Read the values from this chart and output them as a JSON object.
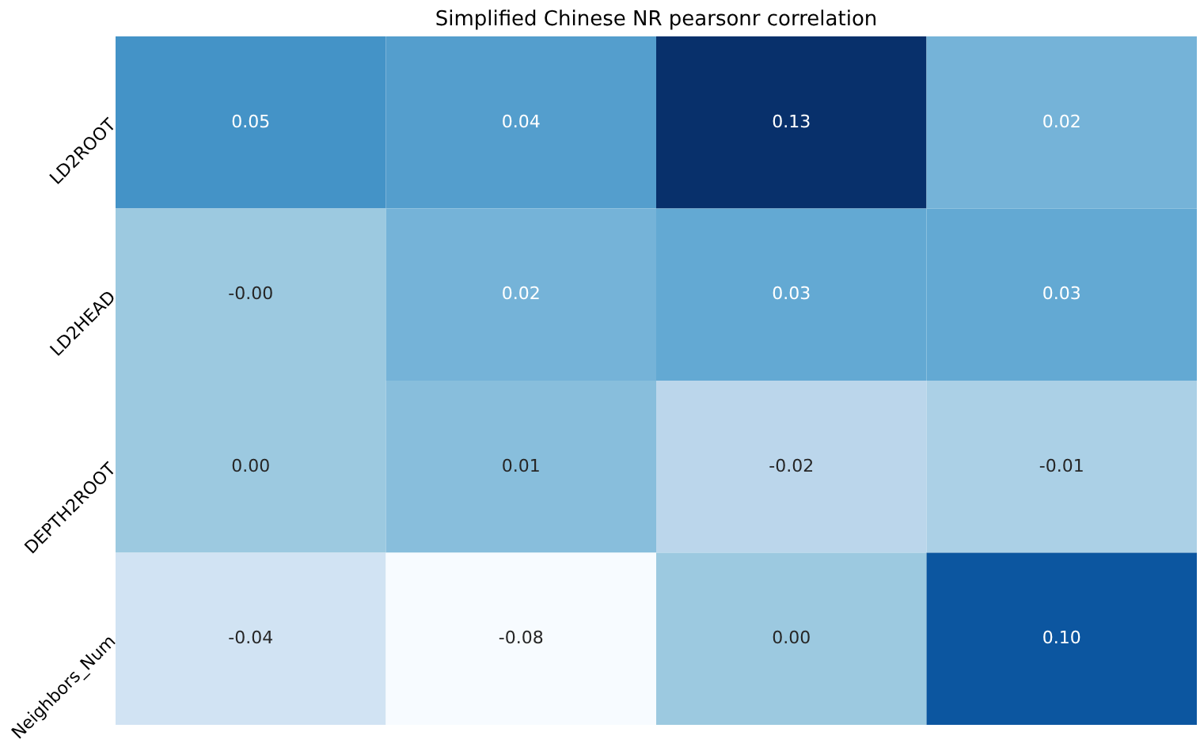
{
  "chart_data": {
    "type": "heatmap",
    "title": "Simplified Chinese NR pearsonr correlation",
    "categories": [
      null,
      null,
      null,
      null
    ],
    "y_categories": [
      "LD2ROOT",
      "LD2HEAD",
      "DEPTH2ROOT",
      "Neighbors_Num"
    ],
    "cells": [
      [
        0.05,
        0.04,
        0.13,
        0.02
      ],
      [
        0.0,
        0.02,
        0.03,
        0.03
      ],
      [
        0.0,
        0.01,
        -0.02,
        -0.01
      ],
      [
        -0.04,
        -0.08,
        0.0,
        0.1
      ]
    ],
    "cell_labels": [
      [
        "0.05",
        "0.04",
        "0.13",
        "0.02"
      ],
      [
        "-0.00",
        "0.02",
        "0.03",
        "0.03"
      ],
      [
        "0.00",
        "0.01",
        "-0.02",
        "-0.01"
      ],
      [
        "-0.04",
        "-0.08",
        "0.00",
        "0.10"
      ]
    ]
  }
}
